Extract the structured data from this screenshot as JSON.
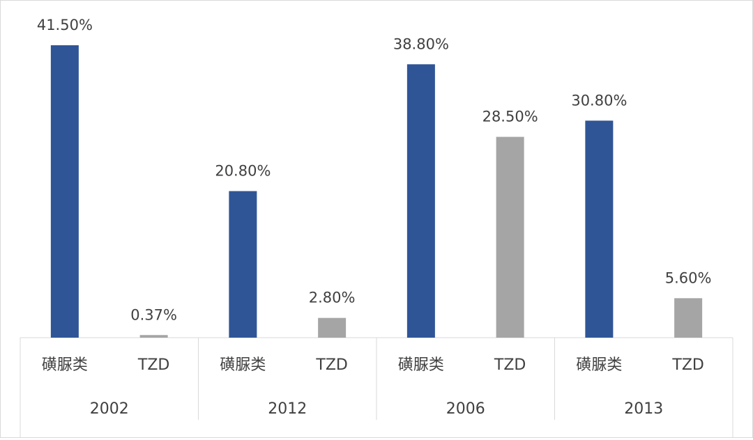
{
  "chart_data": {
    "type": "bar",
    "title": "",
    "ylabel": "",
    "ylim": [
      0,
      45
    ],
    "groups": [
      {
        "label": "2002",
        "bars": [
          {
            "category": "磺脲类",
            "value": 41.5,
            "label": "41.50%"
          },
          {
            "category": "TZD",
            "value": 0.37,
            "label": "0.37%"
          }
        ]
      },
      {
        "label": "2012",
        "bars": [
          {
            "category": "磺脲类",
            "value": 20.8,
            "label": "20.80%"
          },
          {
            "category": "TZD",
            "value": 2.8,
            "label": "2.80%"
          }
        ]
      },
      {
        "label": "2006",
        "bars": [
          {
            "category": "磺脲类",
            "value": 38.8,
            "label": "38.80%"
          },
          {
            "category": "TZD",
            "value": 28.5,
            "label": "28.50%"
          }
        ]
      },
      {
        "label": "2013",
        "bars": [
          {
            "category": "磺脲类",
            "value": 30.8,
            "label": "30.80%"
          },
          {
            "category": "TZD",
            "value": 5.6,
            "label": "5.60%"
          }
        ]
      }
    ],
    "colors": {
      "磺脲类": "#2f5597",
      "TZD": "#a5a5a5"
    },
    "grid": false,
    "legend": "none"
  }
}
